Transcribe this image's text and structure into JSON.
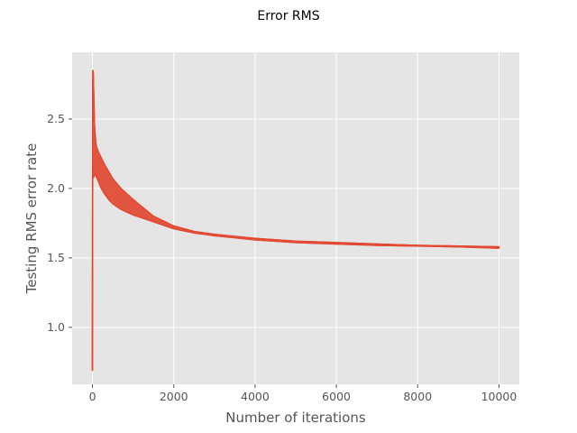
{
  "chart_data": {
    "type": "line",
    "title": "Error RMS",
    "xlabel": "Number of iterations",
    "ylabel": "Testing RMS error rate",
    "xlim": [
      -500,
      10500
    ],
    "ylim": [
      0.59,
      2.98
    ],
    "xticks": [
      0,
      2000,
      4000,
      6000,
      8000,
      10000
    ],
    "xtick_labels": [
      "0",
      "2000",
      "4000",
      "6000",
      "8000",
      "10000"
    ],
    "yticks": [
      1.0,
      1.5,
      2.0,
      2.5
    ],
    "ytick_labels": [
      "1.0",
      "1.5",
      "2.0",
      "2.5"
    ],
    "grid": true,
    "background": "#e5e5e5",
    "grid_color": "#ffffff",
    "series": [
      {
        "color": "#e24a33",
        "upper": {
          "x": [
            0,
            5,
            10,
            20,
            30,
            50,
            80,
            100,
            150,
            200,
            300,
            400,
            500,
            700,
            1000,
            1500,
            2000,
            2500,
            3000,
            4000,
            5000,
            6000,
            7000,
            8000,
            9000,
            10000
          ],
          "y": [
            0.69,
            2.7,
            2.85,
            2.84,
            2.7,
            2.45,
            2.33,
            2.3,
            2.26,
            2.23,
            2.17,
            2.12,
            2.07,
            2.0,
            1.92,
            1.8,
            1.73,
            1.69,
            1.67,
            1.64,
            1.62,
            1.61,
            1.6,
            1.59,
            1.585,
            1.58
          ]
        },
        "lower": {
          "x": [
            0,
            5,
            10,
            20,
            30,
            50,
            80,
            100,
            150,
            200,
            300,
            400,
            500,
            700,
            1000,
            1500,
            2000,
            2500,
            3000,
            4000,
            5000,
            6000,
            7000,
            8000,
            9000,
            10000
          ],
          "y": [
            0.69,
            2.1,
            2.18,
            2.12,
            2.08,
            2.1,
            2.1,
            2.08,
            2.05,
            2.01,
            1.96,
            1.92,
            1.89,
            1.85,
            1.81,
            1.76,
            1.71,
            1.68,
            1.66,
            1.63,
            1.61,
            1.6,
            1.59,
            1.585,
            1.58,
            1.57
          ]
        }
      }
    ]
  }
}
